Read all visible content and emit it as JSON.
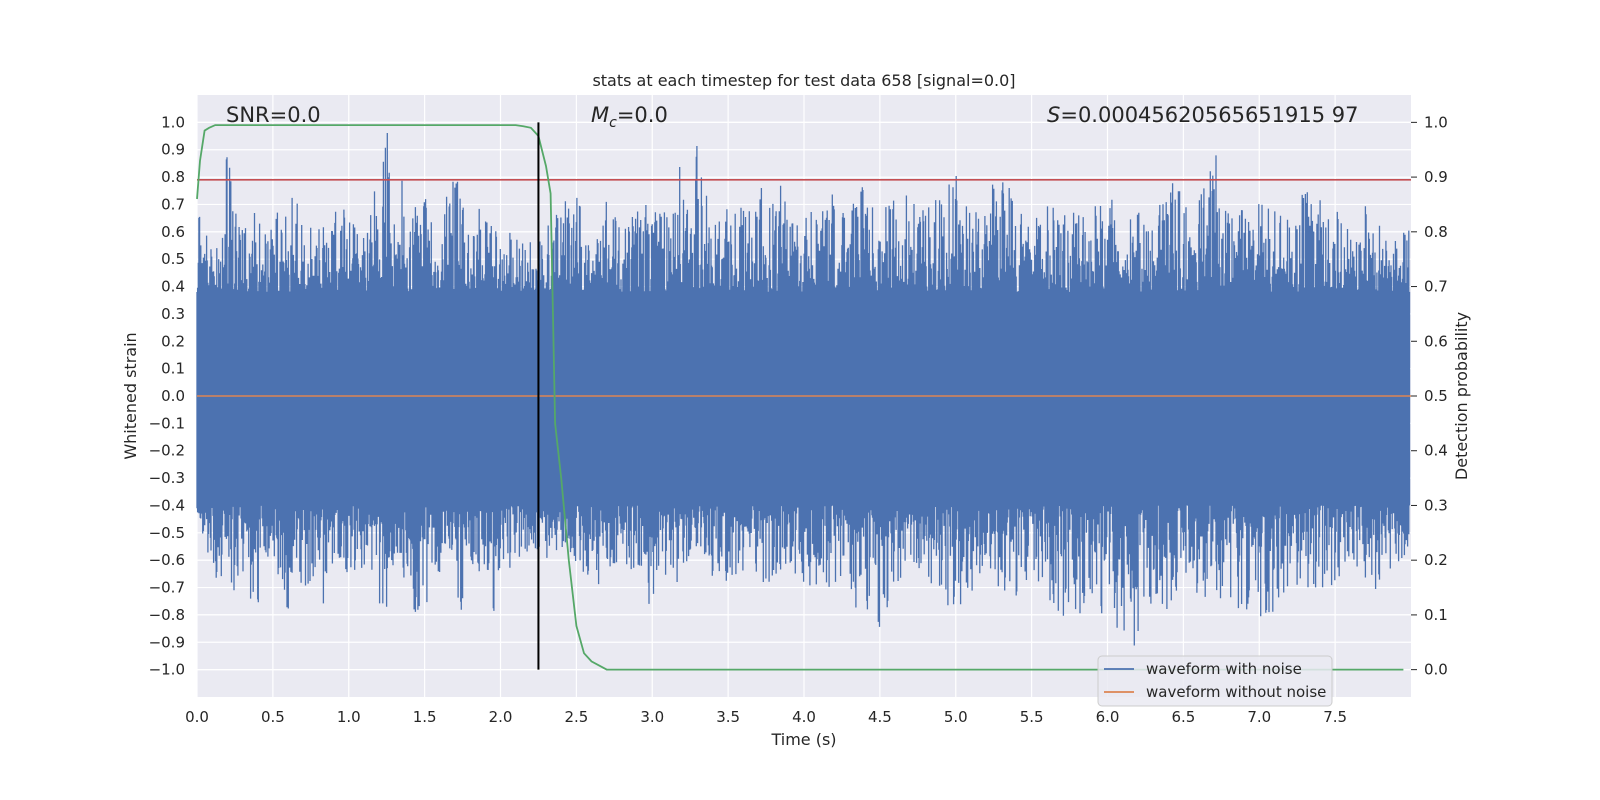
{
  "chart_data": {
    "type": "line",
    "title": "stats at each timestep for test data 658 [signal=0.0]",
    "xlabel": "Time (s)",
    "ylabel": "Whitened strain",
    "y2label": "Detection probability",
    "xlim": [
      0.0,
      8.0
    ],
    "ylim": [
      -1.1,
      1.1
    ],
    "y2lim": [
      -0.05,
      1.05
    ],
    "xticks": [
      "0.0",
      "0.5",
      "1.0",
      "1.5",
      "2.0",
      "2.5",
      "3.0",
      "3.5",
      "4.0",
      "4.5",
      "5.0",
      "5.5",
      "6.0",
      "6.5",
      "7.0",
      "7.5"
    ],
    "yticks": [
      "1.0",
      "0.9",
      "0.8",
      "0.7",
      "0.6",
      "0.5",
      "0.4",
      "0.3",
      "0.2",
      "0.1",
      "0.0",
      "−0.1",
      "−0.2",
      "−0.3",
      "−0.4",
      "−0.5",
      "−0.6",
      "−0.7",
      "−0.8",
      "−0.9",
      "−1.0"
    ],
    "y2ticks": [
      "1.0",
      "0.9",
      "0.8",
      "0.7",
      "0.6",
      "0.5",
      "0.4",
      "0.3",
      "0.2",
      "0.1",
      "0.0"
    ],
    "grid": true,
    "annotations": {
      "snr": "SNR=0.0",
      "mc_symbol": "M",
      "mc_sub": "c",
      "mc_value": "=0.0",
      "s_symbol": "S",
      "s_value": "=0.00045620565651915 97"
    },
    "threshold": {
      "axis": "y",
      "value": 0.79,
      "color": "#c44e52"
    },
    "vline": {
      "x": 2.25,
      "color": "#000000"
    },
    "series": [
      {
        "name": "waveform with noise",
        "color": "#4c72b0",
        "description_type": "noise",
        "envelope_x": [
          0.0,
          0.06,
          0.1,
          0.15,
          0.2,
          0.24,
          0.3,
          0.37,
          0.4,
          0.45,
          0.5,
          0.55,
          0.6,
          0.64,
          0.7,
          0.8,
          0.86,
          0.9,
          1.0,
          1.1,
          1.15,
          1.2,
          1.26,
          1.3,
          1.4,
          1.45,
          1.5,
          1.55,
          1.6,
          1.7,
          1.75,
          1.8,
          1.9,
          1.95,
          2.0,
          2.1,
          2.2,
          2.3,
          2.4,
          2.5,
          2.6,
          2.7,
          2.8,
          2.9,
          3.0,
          3.1,
          3.2,
          3.25,
          3.3,
          3.4,
          3.5,
          3.6,
          3.7,
          3.8,
          3.9,
          4.0,
          4.1,
          4.2,
          4.3,
          4.37,
          4.4,
          4.5,
          4.6,
          4.7,
          4.8,
          4.9,
          5.0,
          5.1,
          5.2,
          5.3,
          5.4,
          5.5,
          5.6,
          5.7,
          5.8,
          5.9,
          6.0,
          6.1,
          6.2,
          6.3,
          6.4,
          6.5,
          6.6,
          6.7,
          6.8,
          6.9,
          7.0,
          7.1,
          7.2,
          7.3,
          7.4,
          7.5,
          7.6,
          7.7,
          7.8,
          7.9,
          7.99
        ],
        "envelope_max": [
          0.7,
          0.58,
          0.7,
          0.65,
          0.93,
          0.7,
          0.63,
          0.69,
          0.64,
          0.6,
          0.66,
          0.82,
          0.6,
          0.81,
          0.65,
          0.65,
          0.6,
          0.75,
          0.66,
          0.6,
          0.72,
          0.8,
          0.98,
          0.65,
          0.93,
          0.68,
          0.72,
          0.75,
          0.65,
          0.85,
          0.7,
          0.6,
          0.75,
          0.62,
          0.6,
          0.6,
          0.57,
          0.63,
          0.72,
          0.75,
          0.62,
          0.72,
          0.6,
          0.75,
          0.75,
          0.7,
          0.9,
          0.6,
          0.97,
          0.62,
          0.7,
          0.72,
          0.77,
          0.85,
          0.7,
          0.68,
          0.7,
          0.75,
          0.63,
          0.88,
          0.7,
          0.68,
          0.75,
          0.8,
          0.7,
          0.73,
          0.83,
          0.68,
          0.7,
          0.9,
          0.72,
          0.6,
          0.78,
          0.71,
          0.68,
          0.7,
          0.73,
          0.7,
          0.7,
          0.68,
          0.8,
          0.78,
          0.8,
          0.91,
          0.71,
          0.7,
          0.71,
          0.72,
          0.72,
          0.8,
          0.73,
          0.7,
          0.62,
          0.7,
          0.62,
          0.58,
          0.62
        ],
        "envelope_min": [
          -0.43,
          -0.55,
          -0.65,
          -0.7,
          -0.6,
          -0.72,
          -0.65,
          -0.78,
          -0.8,
          -0.6,
          -0.68,
          -0.75,
          -0.8,
          -0.6,
          -0.72,
          -0.67,
          -0.87,
          -0.6,
          -0.7,
          -0.62,
          -0.66,
          -0.84,
          -0.76,
          -0.6,
          -0.72,
          -0.84,
          -0.8,
          -0.65,
          -0.7,
          -0.75,
          -0.8,
          -0.7,
          -0.62,
          -0.83,
          -0.7,
          -0.62,
          -0.57,
          -0.62,
          -0.55,
          -0.62,
          -0.72,
          -0.65,
          -0.62,
          -0.65,
          -0.81,
          -0.68,
          -0.7,
          -0.6,
          -0.62,
          -0.66,
          -0.7,
          -0.64,
          -0.68,
          -0.68,
          -0.7,
          -0.68,
          -0.73,
          -0.73,
          -0.66,
          -0.92,
          -0.78,
          -0.86,
          -0.7,
          -0.62,
          -0.66,
          -0.74,
          -0.82,
          -0.75,
          -0.7,
          -0.72,
          -0.74,
          -0.68,
          -0.75,
          -0.8,
          -0.86,
          -0.82,
          -0.79,
          -0.9,
          -0.92,
          -0.75,
          -0.8,
          -0.7,
          -0.76,
          -0.72,
          -0.77,
          -0.8,
          -0.83,
          -0.8,
          -0.7,
          -0.7,
          -0.72,
          -0.7,
          -0.62,
          -0.78,
          -0.67,
          -0.64,
          -0.6
        ]
      },
      {
        "name": "waveform without noise",
        "color": "#dd8452",
        "x": [
          0.0,
          8.0
        ],
        "y": [
          0.0,
          0.0
        ]
      },
      {
        "name": "detection probability",
        "color": "#55a868",
        "axis": "y2",
        "x": [
          0.0,
          0.02,
          0.05,
          0.08,
          0.12,
          0.2,
          0.5,
          1.0,
          1.5,
          2.0,
          2.1,
          2.15,
          2.2,
          2.25,
          2.3,
          2.33,
          2.36,
          2.4,
          2.45,
          2.5,
          2.55,
          2.6,
          2.7,
          3.0,
          5.0,
          7.0,
          7.95
        ],
        "y": [
          0.86,
          0.93,
          0.985,
          0.99,
          0.995,
          0.995,
          0.995,
          0.995,
          0.995,
          0.995,
          0.995,
          0.993,
          0.99,
          0.975,
          0.92,
          0.87,
          0.45,
          0.35,
          0.2,
          0.08,
          0.03,
          0.015,
          0.0,
          0.0,
          0.0,
          0.0,
          0.0
        ]
      }
    ],
    "legend": {
      "placement": "bottom-right",
      "entries": [
        {
          "label": "waveform with noise",
          "color": "#4c72b0"
        },
        {
          "label": "waveform without noise",
          "color": "#dd8452"
        }
      ]
    }
  }
}
